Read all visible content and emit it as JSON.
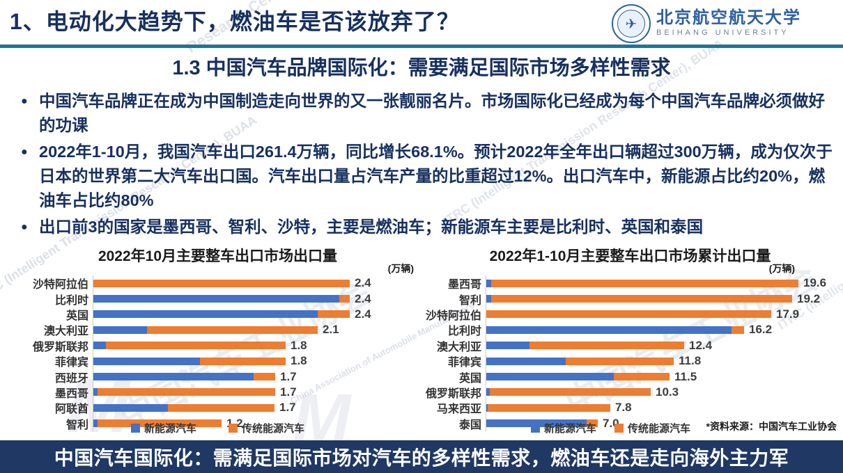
{
  "header": {
    "title": "1、电动化大趋势下，燃油车是否该放弃了？",
    "logo": {
      "cn": "北京航空航天大学",
      "en": "BEIHANG UNIVERSITY",
      "emblem_icon": "airplane-emblem"
    }
  },
  "section": {
    "title": "1.3 中国汽车品牌国际化：需要满足国际市场多样性需求"
  },
  "bullets": [
    "中国汽车品牌正在成为中国制造走向世界的又一张靓丽名片。市场国际化已经成为每个中国汽车品牌必须做好的功课",
    "2022年1-10月，我国汽车出口261.4万辆，同比增长68.1%。预计2022年全年出口辆超过300万辆，成为仅次于日本的世界第二大汽车出口国。汽车出口量占汽车产量的比重超过12%。出口汽车中，新能源占比约20%，燃油车占比约80%",
    "出口前3的国家是墨西哥、智利、沙特，主要是燃油车；新能源车主要是比利时、英国和泰国"
  ],
  "chart_data": [
    {
      "type": "bar",
      "orientation": "horizontal",
      "stacked": true,
      "title": "2022年10月主要整车出口市场出口量",
      "unit_label": "(万辆)",
      "categories": [
        "沙特阿拉伯",
        "比利时",
        "英国",
        "澳大利亚",
        "俄罗斯联邦",
        "菲律宾",
        "西班牙",
        "墨西哥",
        "阿联酋",
        "智利"
      ],
      "series": [
        {
          "name": "新能源汽车",
          "color": "#4472c4",
          "values": [
            0,
            2.3,
            2.1,
            0.5,
            0.12,
            1.0,
            1.5,
            0.04,
            0.7,
            0.04
          ]
        },
        {
          "name": "传统能源汽车",
          "color": "#ed7d31",
          "values": [
            2.4,
            0.1,
            0.3,
            1.6,
            1.68,
            0.8,
            0.2,
            1.66,
            1.0,
            1.16
          ]
        }
      ],
      "totals": [
        2.4,
        2.4,
        2.4,
        2.1,
        1.8,
        1.8,
        1.7,
        1.7,
        1.7,
        1.2
      ],
      "xlim": [
        0,
        2.4
      ],
      "legend_position": "bottom",
      "grid": false
    },
    {
      "type": "bar",
      "orientation": "horizontal",
      "stacked": true,
      "title": "2022年1-10月主要整车出口市场累计出口量",
      "unit_label": "(万辆)",
      "categories": [
        "墨西哥",
        "智利",
        "沙特阿拉伯",
        "比利时",
        "澳大利亚",
        "菲律宾",
        "英国",
        "俄罗斯联邦",
        "马来西亚",
        "泰国"
      ],
      "series": [
        {
          "name": "新能源汽车",
          "color": "#4472c4",
          "values": [
            0.3,
            0.3,
            0,
            15.4,
            2.7,
            5.0,
            8.0,
            0.2,
            0.1,
            6.3
          ]
        },
        {
          "name": "传统能源汽车",
          "color": "#ed7d31",
          "values": [
            19.3,
            18.9,
            17.9,
            0.8,
            9.7,
            6.8,
            3.5,
            10.1,
            7.7,
            0.7
          ]
        }
      ],
      "totals": [
        19.6,
        19.2,
        17.9,
        16.2,
        12.4,
        11.8,
        11.5,
        10.3,
        7.8,
        7.0
      ],
      "xlim": [
        0,
        19.6
      ],
      "legend_position": "bottom",
      "grid": false,
      "source_note": "*资料来源：中国汽车工业协会"
    }
  ],
  "footer": {
    "banner": "中国汽车国际化：需满足国际市场对汽车的多样性需求，燃油车还是走向海外主力军"
  },
  "colors": {
    "title_navy": "#16305f",
    "divider_teal": "#1f7499",
    "banner_bg": "#1f3864",
    "bar_blue": "#4472c4",
    "bar_orange": "#ed7d31"
  },
  "watermarks": [
    "Research Center, BUAA",
    "ITRC (Intelligent Transmission Research Center), BUAA",
    "中国汽车工业协会",
    "China Association of Automobile Manufacturers",
    "M"
  ]
}
